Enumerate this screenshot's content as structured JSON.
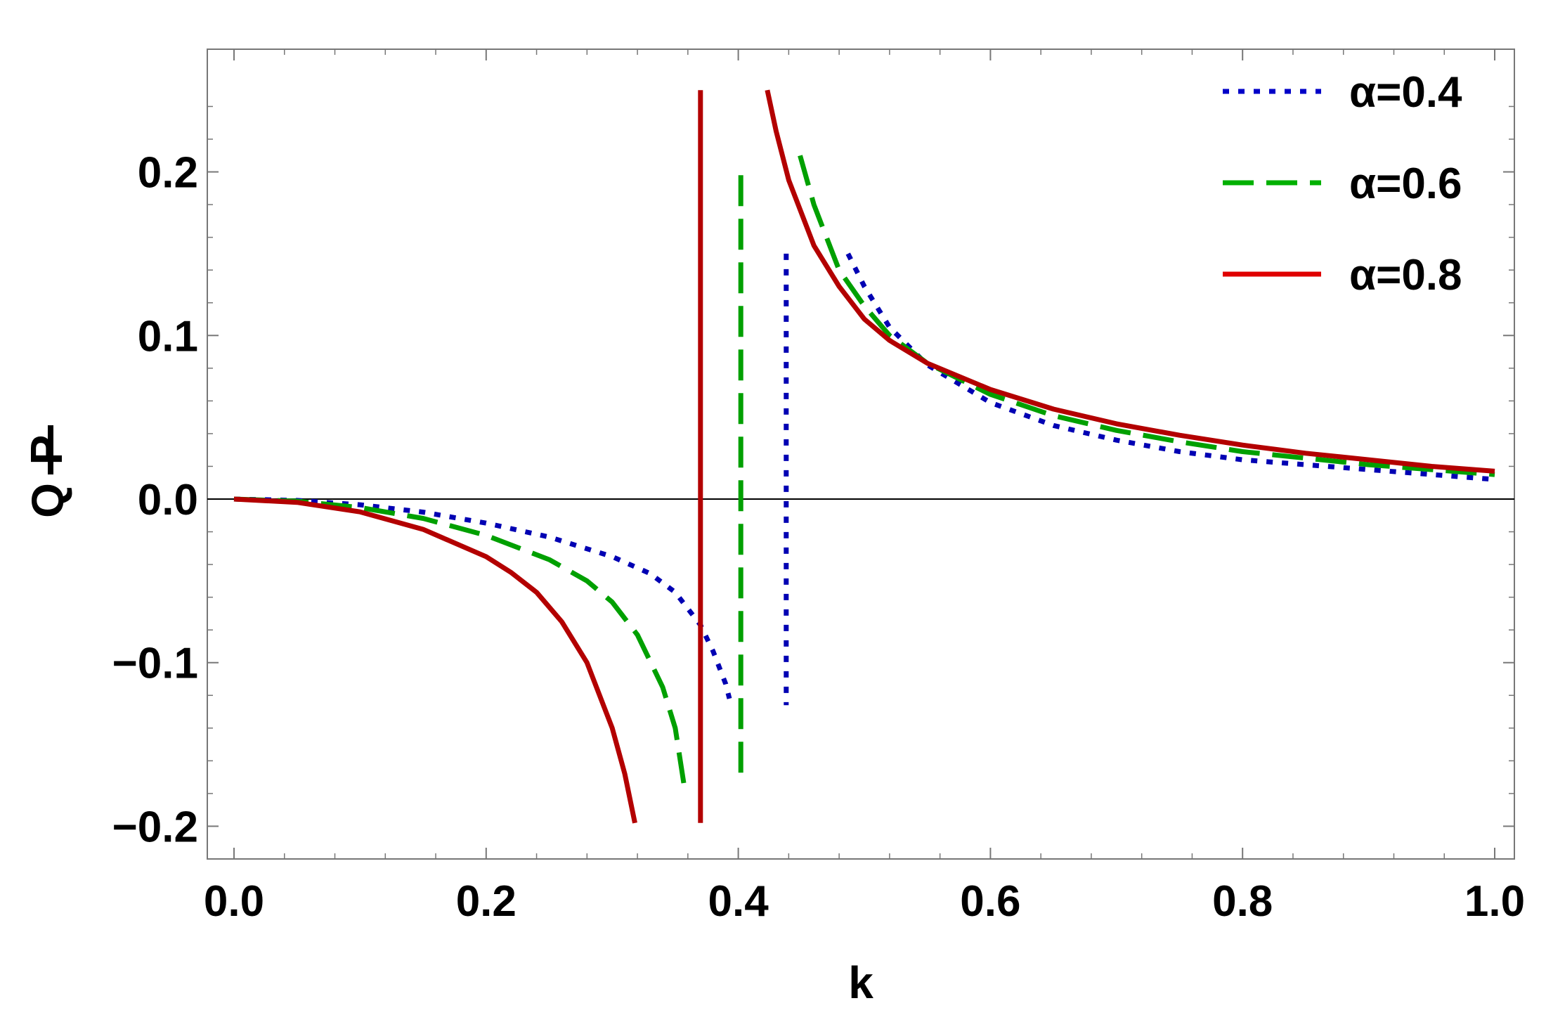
{
  "chart_data": {
    "type": "line",
    "xlabel": "k",
    "ylabel": {
      "numerator": "P",
      "denominator": "Q"
    },
    "xlim": [
      0.0,
      1.0
    ],
    "ylim": [
      -0.22,
      0.275
    ],
    "x_ticks": [
      {
        "value": 0.0,
        "label": "0.0"
      },
      {
        "value": 0.2,
        "label": "0.2"
      },
      {
        "value": 0.4,
        "label": "0.4"
      },
      {
        "value": 0.6,
        "label": "0.6"
      },
      {
        "value": 0.8,
        "label": "0.8"
      },
      {
        "value": 1.0,
        "label": "1.0"
      }
    ],
    "y_ticks": [
      {
        "value": -0.2,
        "label": "−0.2"
      },
      {
        "value": -0.1,
        "label": "−0.1"
      },
      {
        "value": 0.0,
        "label": "0.0"
      },
      {
        "value": 0.1,
        "label": "0.1"
      },
      {
        "value": 0.2,
        "label": "0.2"
      }
    ],
    "grid": false,
    "legend_position": "top-right",
    "zero_line": true,
    "series": [
      {
        "name": "α=0.4",
        "color": "#0000b3",
        "style": "dotted",
        "segments": [
          [
            [
              0.0,
              0.0
            ],
            [
              0.05,
              -0.0008
            ],
            [
              0.1,
              -0.0035
            ],
            [
              0.15,
              -0.008
            ],
            [
              0.2,
              -0.0147
            ],
            [
              0.25,
              -0.0232
            ],
            [
              0.3,
              -0.0352
            ],
            [
              0.33,
              -0.0455
            ],
            [
              0.35,
              -0.057
            ],
            [
              0.37,
              -0.077
            ],
            [
              0.38,
              -0.093
            ],
            [
              0.39,
              -0.113
            ],
            [
              0.393,
              -0.122
            ]
          ],
          [
            [
              0.438,
              0.15
            ],
            [
              0.438,
              -0.126
            ]
          ],
          [
            [
              0.487,
              0.15
            ],
            [
              0.5,
              0.13
            ],
            [
              0.52,
              0.105
            ],
            [
              0.55,
              0.082
            ],
            [
              0.6,
              0.059
            ],
            [
              0.65,
              0.045
            ],
            [
              0.7,
              0.036
            ],
            [
              0.75,
              0.029
            ],
            [
              0.8,
              0.024
            ],
            [
              0.85,
              0.021
            ],
            [
              0.9,
              0.018
            ],
            [
              0.95,
              0.015
            ],
            [
              1.0,
              0.012
            ]
          ]
        ]
      },
      {
        "name": "α=0.6",
        "color": "#00a000",
        "style": "dashed",
        "segments": [
          [
            [
              0.0,
              0.0
            ],
            [
              0.05,
              -0.0013
            ],
            [
              0.1,
              -0.0052
            ],
            [
              0.15,
              -0.0118
            ],
            [
              0.2,
              -0.0222
            ],
            [
              0.25,
              -0.037
            ],
            [
              0.28,
              -0.05
            ],
            [
              0.3,
              -0.063
            ],
            [
              0.32,
              -0.083
            ],
            [
              0.34,
              -0.115
            ],
            [
              0.35,
              -0.14
            ],
            [
              0.357,
              -0.175
            ]
          ],
          [
            [
              0.402,
              0.198
            ],
            [
              0.402,
              -0.175
            ]
          ],
          [
            [
              0.449,
              0.21
            ],
            [
              0.46,
              0.18
            ],
            [
              0.48,
              0.14
            ],
            [
              0.5,
              0.118
            ],
            [
              0.52,
              0.1
            ],
            [
              0.55,
              0.083
            ],
            [
              0.6,
              0.064
            ],
            [
              0.65,
              0.051
            ],
            [
              0.7,
              0.042
            ],
            [
              0.75,
              0.035
            ],
            [
              0.8,
              0.029
            ],
            [
              0.85,
              0.025
            ],
            [
              0.9,
              0.021
            ],
            [
              0.95,
              0.018
            ],
            [
              1.0,
              0.015
            ]
          ]
        ]
      },
      {
        "name": "α=0.8",
        "color": "#b30000",
        "style": "solid",
        "segments": [
          [
            [
              0.0,
              0.0
            ],
            [
              0.05,
              -0.002
            ],
            [
              0.1,
              -0.0078
            ],
            [
              0.15,
              -0.0185
            ],
            [
              0.2,
              -0.0352
            ],
            [
              0.22,
              -0.045
            ],
            [
              0.24,
              -0.057
            ],
            [
              0.26,
              -0.075
            ],
            [
              0.28,
              -0.1
            ],
            [
              0.3,
              -0.14
            ],
            [
              0.31,
              -0.168
            ],
            [
              0.318,
              -0.198
            ]
          ],
          [
            [
              0.37,
              0.25
            ],
            [
              0.37,
              -0.198
            ]
          ],
          [
            [
              0.423,
              0.25
            ],
            [
              0.43,
              0.225
            ],
            [
              0.44,
              0.195
            ],
            [
              0.46,
              0.155
            ],
            [
              0.48,
              0.13
            ],
            [
              0.5,
              0.11
            ],
            [
              0.52,
              0.097
            ],
            [
              0.55,
              0.083
            ],
            [
              0.6,
              0.067
            ],
            [
              0.65,
              0.055
            ],
            [
              0.7,
              0.046
            ],
            [
              0.75,
              0.039
            ],
            [
              0.8,
              0.033
            ],
            [
              0.85,
              0.028
            ],
            [
              0.9,
              0.024
            ],
            [
              0.95,
              0.02
            ],
            [
              1.0,
              0.017
            ]
          ]
        ]
      }
    ]
  }
}
